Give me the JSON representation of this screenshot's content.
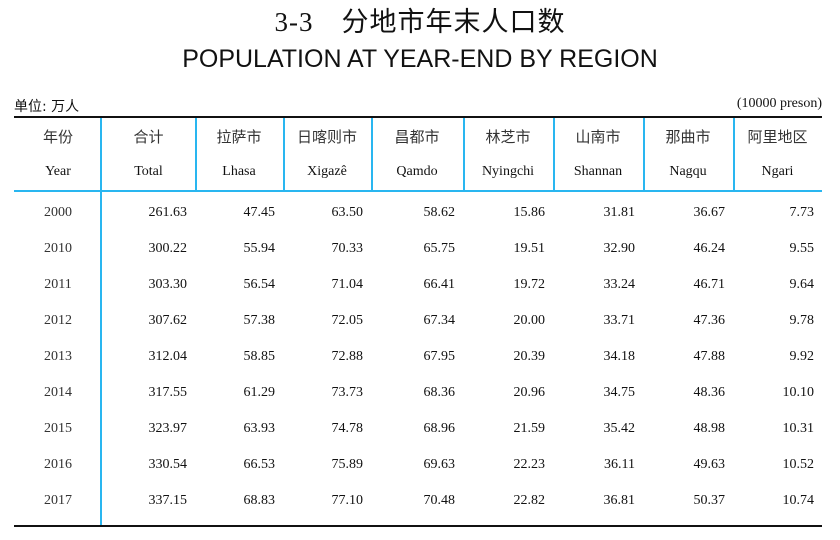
{
  "title_cn": "3-3　分地市年末人口数",
  "title_en": "POPULATION AT YEAR-END BY REGION",
  "unit_left": "单位: 万人",
  "unit_right": "(10000 preson)",
  "columns": [
    {
      "cn": "年份",
      "en": "Year"
    },
    {
      "cn": "合计",
      "en": "Total"
    },
    {
      "cn": "拉萨市",
      "en": "Lhasa"
    },
    {
      "cn": "日喀则市",
      "en": "Xigazê"
    },
    {
      "cn": "昌都市",
      "en": "Qamdo"
    },
    {
      "cn": "林芝市",
      "en": "Nyingchi"
    },
    {
      "cn": "山南市",
      "en": "Shannan"
    },
    {
      "cn": "那曲市",
      "en": "Nagqu"
    },
    {
      "cn": "阿里地区",
      "en": "Ngari"
    }
  ],
  "rows": [
    [
      "2000",
      "261.63",
      "47.45",
      "63.50",
      "58.62",
      "15.86",
      "31.81",
      "36.67",
      "7.73"
    ],
    [
      "2010",
      "300.22",
      "55.94",
      "70.33",
      "65.75",
      "19.51",
      "32.90",
      "46.24",
      "9.55"
    ],
    [
      "2011",
      "303.30",
      "56.54",
      "71.04",
      "66.41",
      "19.72",
      "33.24",
      "46.71",
      "9.64"
    ],
    [
      "2012",
      "307.62",
      "57.38",
      "72.05",
      "67.34",
      "20.00",
      "33.71",
      "47.36",
      "9.78"
    ],
    [
      "2013",
      "312.04",
      "58.85",
      "72.88",
      "67.95",
      "20.39",
      "34.18",
      "47.88",
      "9.92"
    ],
    [
      "2014",
      "317.55",
      "61.29",
      "73.73",
      "68.36",
      "20.96",
      "34.75",
      "48.36",
      "10.10"
    ],
    [
      "2015",
      "323.97",
      "63.93",
      "74.78",
      "68.96",
      "21.59",
      "35.42",
      "48.98",
      "10.31"
    ],
    [
      "2016",
      "330.54",
      "66.53",
      "75.89",
      "69.63",
      "22.23",
      "36.11",
      "49.63",
      "10.52"
    ],
    [
      "2017",
      "337.15",
      "68.83",
      "77.10",
      "70.48",
      "22.82",
      "36.81",
      "50.37",
      "10.74"
    ]
  ]
}
